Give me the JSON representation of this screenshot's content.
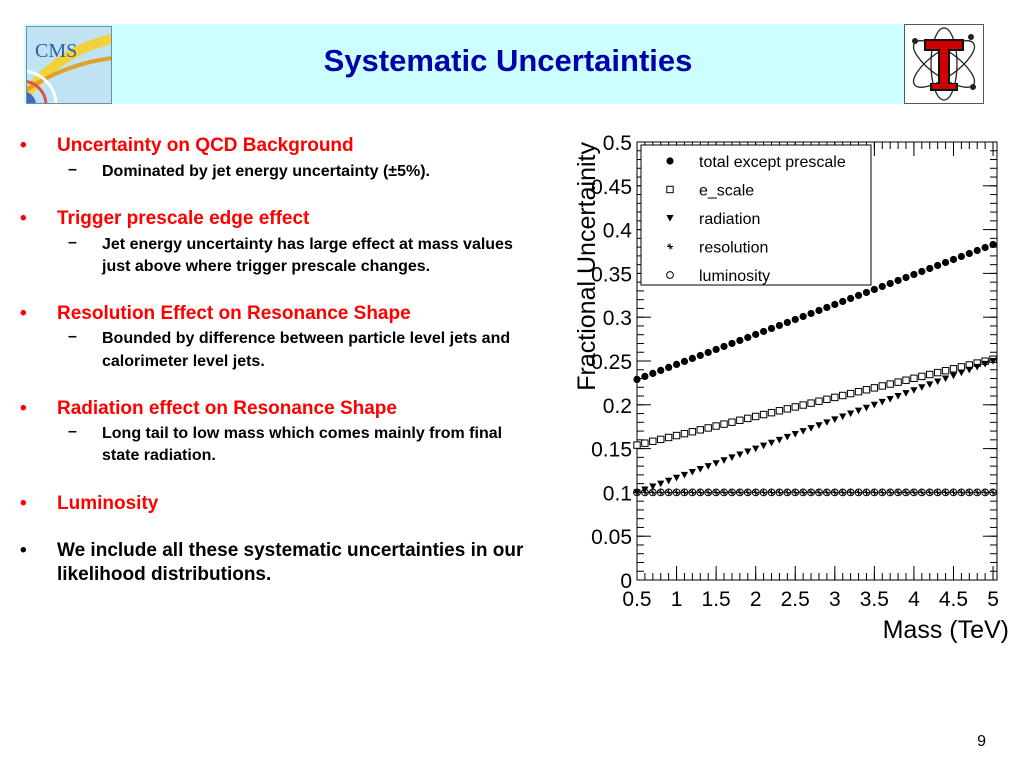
{
  "slide": {
    "title": "Systematic Uncertainties",
    "page_number": "9"
  },
  "bullets": [
    {
      "heading": "Uncertainty on QCD Background",
      "color": "#ff0000",
      "subs": [
        "Dominated by jet energy uncertainty (±5%)."
      ]
    },
    {
      "heading": "Trigger prescale edge effect",
      "color": "#ff0000",
      "subs": [
        "Jet energy uncertainty has large effect at mass values just above where trigger prescale changes."
      ]
    },
    {
      "heading": "Resolution Effect on Resonance Shape",
      "color": "#ff0000",
      "subs": [
        "Bounded by difference between particle level jets and calorimeter level jets."
      ]
    },
    {
      "heading": "Radiation effect on Resonance Shape",
      "color": "#ff0000",
      "subs": [
        "Long tail to low mass which comes mainly from final state radiation."
      ]
    },
    {
      "heading": "Luminosity",
      "color": "#ff0000",
      "subs": []
    },
    {
      "heading": "We include all these systematic uncertainties in our likelihood distributions.",
      "color": "#000000",
      "subs": []
    }
  ],
  "logos": {
    "left": {
      "name": "cms-logo",
      "text": "CMS"
    },
    "right": {
      "name": "texas-tech-logo",
      "text": "T"
    }
  },
  "chart_data": {
    "type": "scatter",
    "xlabel": "Mass (TeV)",
    "ylabel": "Fractional Uncertainity",
    "xlim": [
      0.5,
      5.05
    ],
    "ylim": [
      0,
      0.5
    ],
    "xticks": [
      "0.5",
      "1",
      "1.5",
      "2",
      "2.5",
      "3",
      "3.5",
      "4",
      "4.5",
      "5"
    ],
    "yticks": [
      "0",
      "0.05",
      "0.1",
      "0.15",
      "0.2",
      "0.25",
      "0.3",
      "0.35",
      "0.4",
      "0.45",
      "0.5"
    ],
    "x_range_points": {
      "start": 0.5,
      "stop": 5.0,
      "step": 0.1
    },
    "legend_position": "top-left",
    "grid": false,
    "series": [
      {
        "name": "total except prescale",
        "marker": "filled-circle",
        "y_start": 0.229,
        "y_end": 0.383
      },
      {
        "name": "e_scale",
        "marker": "open-square",
        "y_start": 0.154,
        "y_end": 0.252
      },
      {
        "name": "radiation",
        "marker": "filled-triangle-down",
        "y_start": 0.1,
        "y_end": 0.25
      },
      {
        "name": "resolution",
        "marker": "star",
        "y_start": 0.1,
        "y_end": 0.1
      },
      {
        "name": "luminosity",
        "marker": "open-circle",
        "y_start": 0.1,
        "y_end": 0.1
      }
    ]
  }
}
